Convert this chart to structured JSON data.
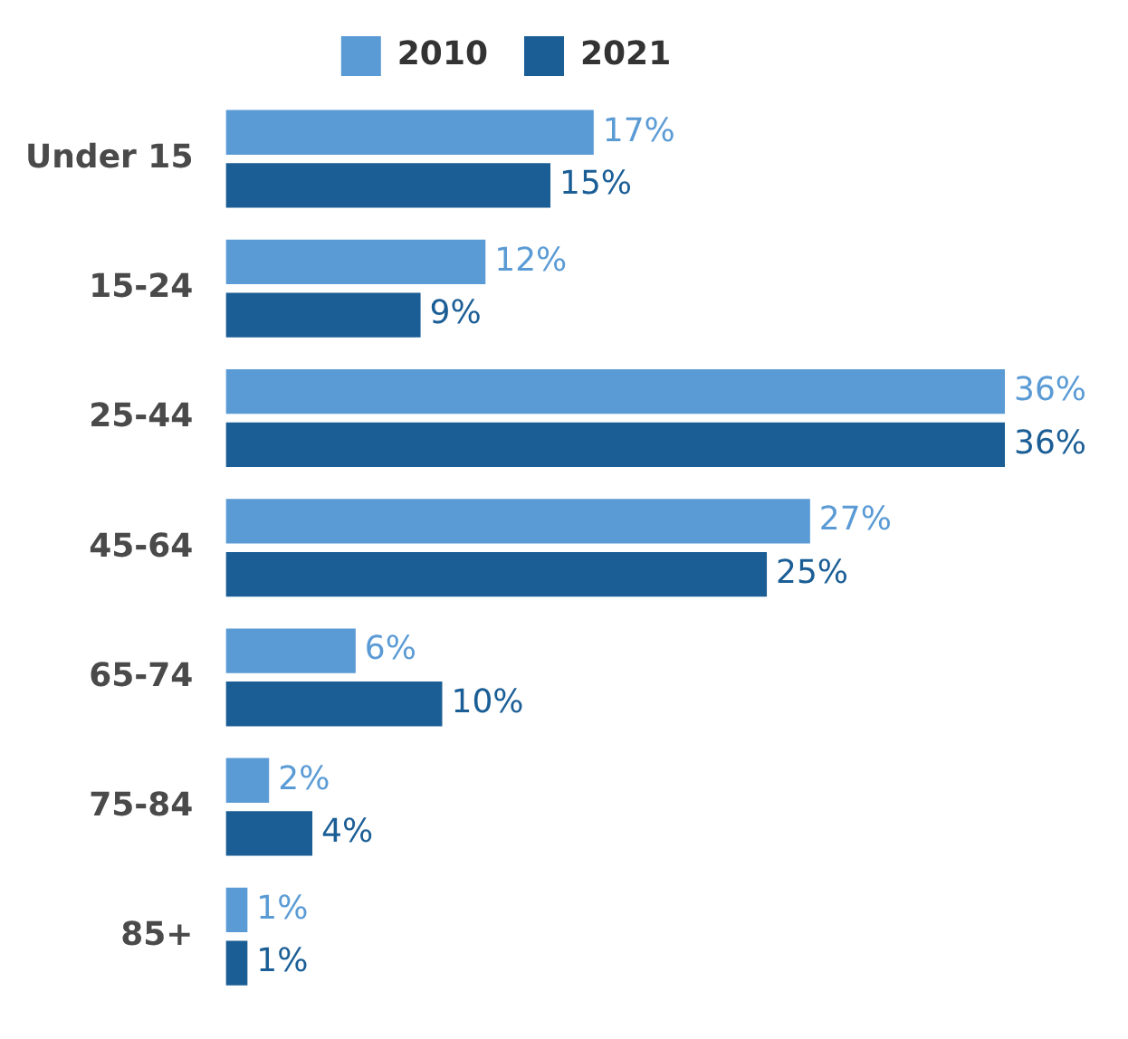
{
  "chart_data": {
    "type": "bar",
    "orientation": "horizontal",
    "legend": "top",
    "categories": [
      "Under 15",
      "15-24",
      "25-44",
      "45-64",
      "65-74",
      "75-84",
      "85+"
    ],
    "series": [
      {
        "name": "2010",
        "color": "#5b9bd5",
        "values": [
          17,
          12,
          36,
          27,
          6,
          2,
          1
        ],
        "value_labels": [
          "17%",
          "12%",
          "36%",
          "27%",
          "6%",
          "2%",
          "1%"
        ]
      },
      {
        "name": "2021",
        "color": "#1b5e96",
        "values": [
          15,
          9,
          36,
          25,
          10,
          4,
          1
        ],
        "value_labels": [
          "15%",
          "9%",
          "36%",
          "25%",
          "10%",
          "4%",
          "1%"
        ]
      }
    ]
  }
}
